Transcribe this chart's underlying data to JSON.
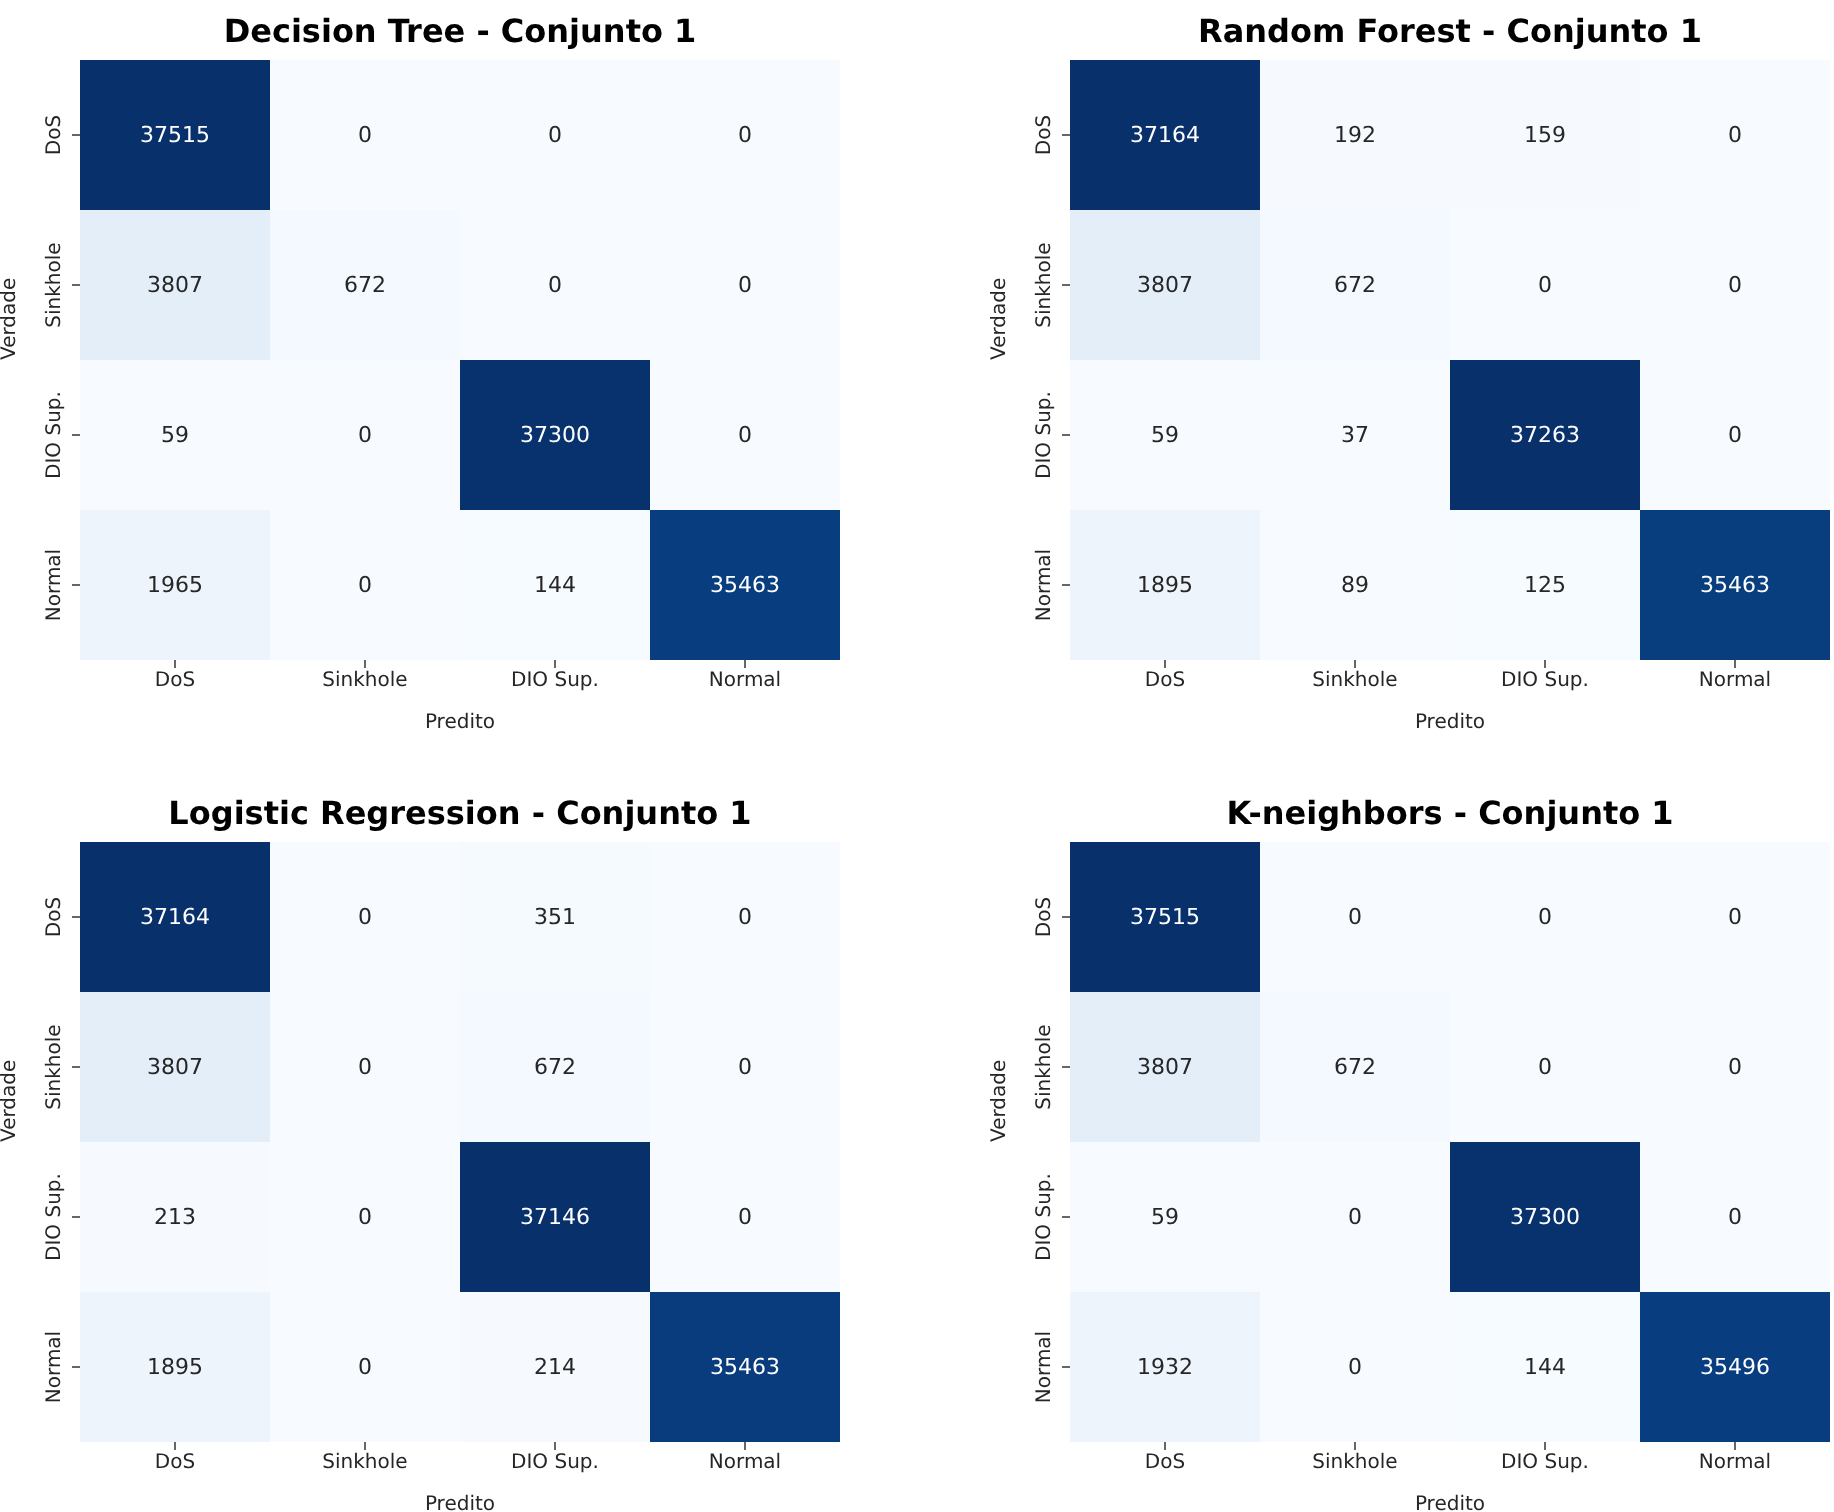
{
  "chart_data": [
    {
      "type": "heatmap",
      "title": "Decision Tree - Conjunto 1",
      "xlabel": "Predito",
      "ylabel": "Verdade",
      "categories": [
        "DoS",
        "Sinkhole",
        "DIO Sup.",
        "Normal"
      ],
      "y_categories": [
        "DoS",
        "Sinkhole",
        "DIO Sup.",
        "Normal"
      ],
      "data_labels": true,
      "cells": [
        [
          37515,
          0,
          0,
          0
        ],
        [
          3807,
          672,
          0,
          0
        ],
        [
          59,
          0,
          37300,
          0
        ],
        [
          1965,
          0,
          144,
          35463
        ]
      ]
    },
    {
      "type": "heatmap",
      "title": "Random Forest - Conjunto 1",
      "xlabel": "Predito",
      "ylabel": "Verdade",
      "categories": [
        "DoS",
        "Sinkhole",
        "DIO Sup.",
        "Normal"
      ],
      "y_categories": [
        "DoS",
        "Sinkhole",
        "DIO Sup.",
        "Normal"
      ],
      "data_labels": true,
      "cells": [
        [
          37164,
          192,
          159,
          0
        ],
        [
          3807,
          672,
          0,
          0
        ],
        [
          59,
          37,
          37263,
          0
        ],
        [
          1895,
          89,
          125,
          35463
        ]
      ]
    },
    {
      "type": "heatmap",
      "title": "Logistic Regression - Conjunto 1",
      "xlabel": "Predito",
      "ylabel": "Verdade",
      "categories": [
        "DoS",
        "Sinkhole",
        "DIO Sup.",
        "Normal"
      ],
      "y_categories": [
        "DoS",
        "Sinkhole",
        "DIO Sup.",
        "Normal"
      ],
      "data_labels": true,
      "cells": [
        [
          37164,
          0,
          351,
          0
        ],
        [
          3807,
          0,
          672,
          0
        ],
        [
          213,
          0,
          37146,
          0
        ],
        [
          1895,
          0,
          214,
          35463
        ]
      ]
    },
    {
      "type": "heatmap",
      "title": "K-neighbors - Conjunto 1",
      "xlabel": "Predito",
      "ylabel": "Verdade",
      "categories": [
        "DoS",
        "Sinkhole",
        "DIO Sup.",
        "Normal"
      ],
      "y_categories": [
        "DoS",
        "Sinkhole",
        "DIO Sup.",
        "Normal"
      ],
      "data_labels": true,
      "cells": [
        [
          37515,
          0,
          0,
          0
        ],
        [
          3807,
          672,
          0,
          0
        ],
        [
          59,
          0,
          37300,
          0
        ],
        [
          1932,
          0,
          144,
          35496
        ]
      ]
    }
  ]
}
